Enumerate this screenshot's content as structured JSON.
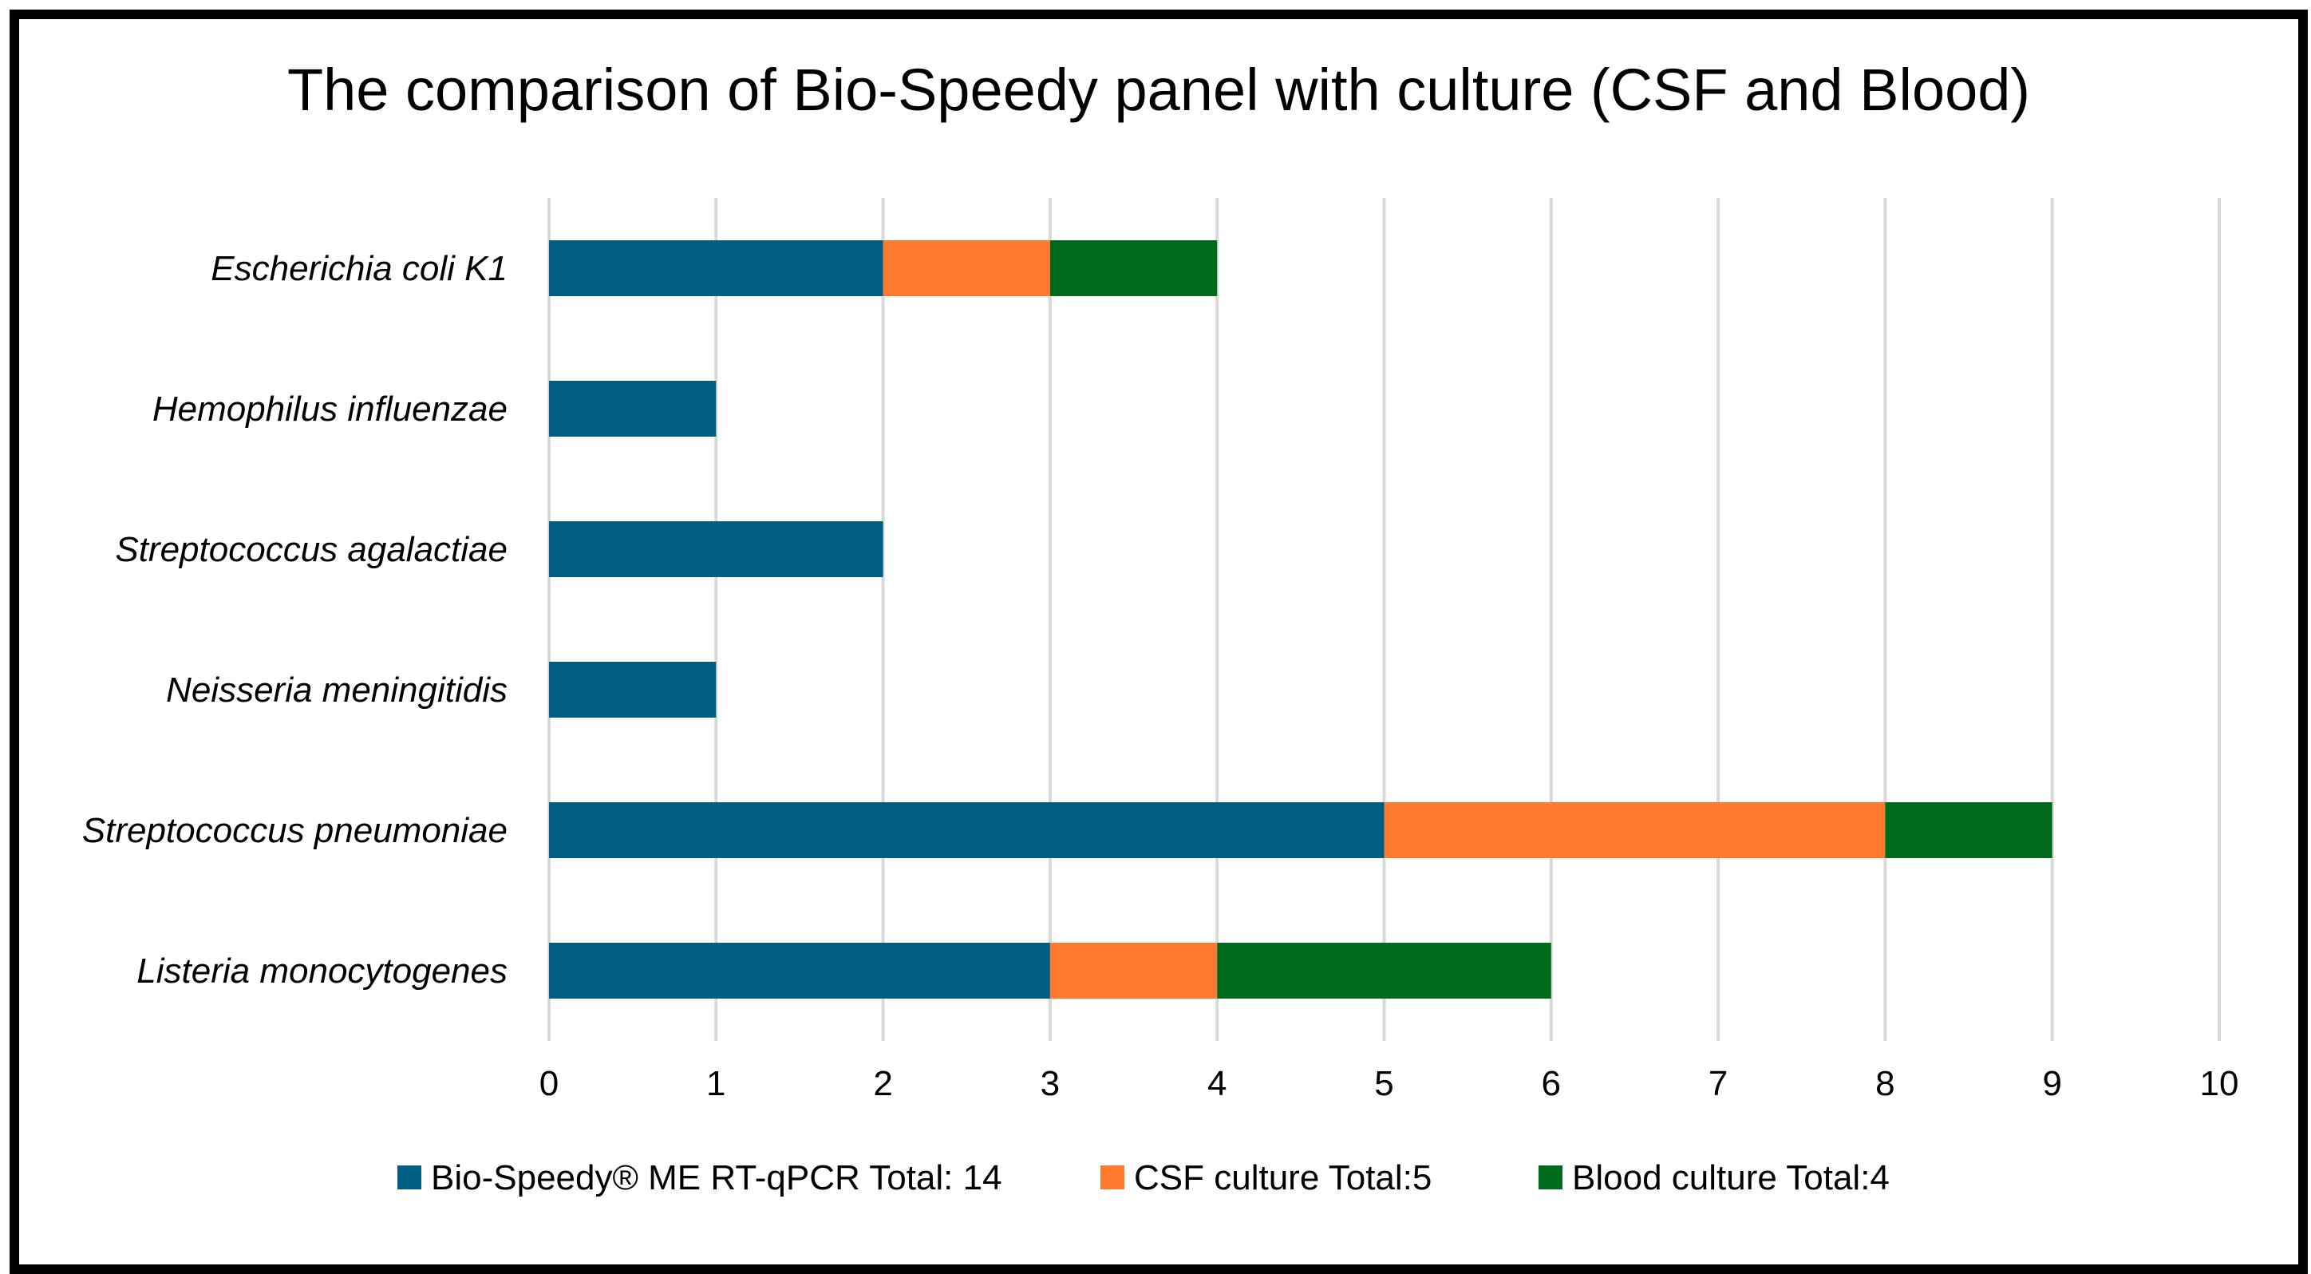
{
  "chart_data": {
    "type": "bar",
    "orientation": "horizontal",
    "stacked": true,
    "title": "The comparison of Bio-Speedy panel with culture (CSF and Blood)",
    "categories": [
      "Escherichia coli K1",
      "Hemophilus influenzae",
      "Streptococcus agalactiae",
      "Neisseria meningitidis",
      "Streptococcus pneumoniae",
      "Listeria monocytogenes"
    ],
    "series": [
      {
        "name": "Bio-Speedy® ME RT-qPCR Total: 14",
        "color": "#005F83",
        "values": [
          2,
          1,
          2,
          1,
          5,
          3
        ]
      },
      {
        "name": "CSF culture Total:5",
        "color": "#FF7A2F",
        "values": [
          1,
          0,
          0,
          0,
          3,
          1
        ]
      },
      {
        "name": "Blood culture Total:4",
        "color": "#006B1B",
        "values": [
          1,
          0,
          0,
          0,
          1,
          2
        ]
      }
    ],
    "xlim": [
      0,
      10
    ],
    "xticks": [
      "0",
      "1",
      "2",
      "3",
      "4",
      "5",
      "6",
      "7",
      "8",
      "9",
      "10"
    ],
    "grid": true,
    "legend": "bottom"
  }
}
